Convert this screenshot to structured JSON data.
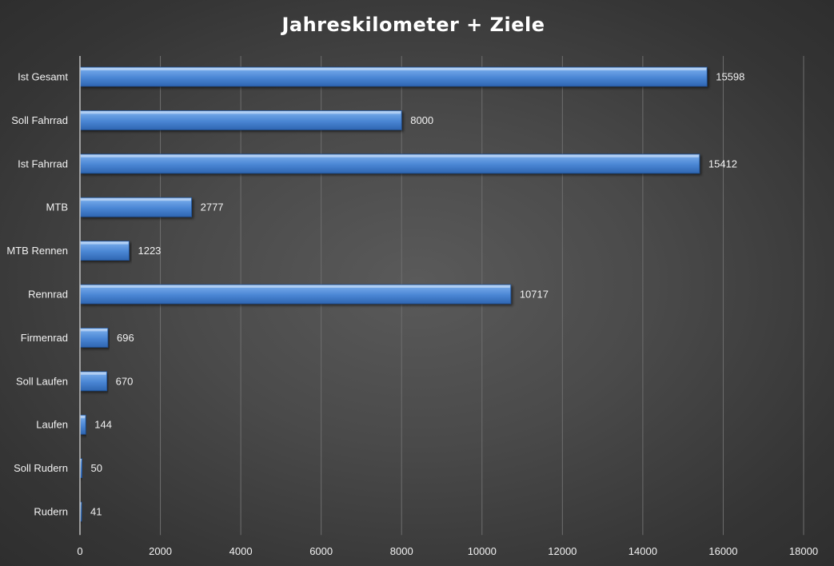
{
  "chart_data": {
    "type": "bar",
    "orientation": "horizontal",
    "title": "Jahreskilometer + Ziele",
    "xlabel": "",
    "ylabel": "",
    "categories": [
      "Ist Gesamt",
      "Soll Fahrrad",
      "Ist Fahrrad",
      "MTB",
      "MTB Rennen",
      "Rennrad",
      "Firmenrad",
      "Soll Laufen",
      "Laufen",
      "Soll Rudern",
      "Rudern"
    ],
    "values": [
      15598,
      8000,
      15412,
      2777,
      1223,
      10717,
      696,
      670,
      144,
      50,
      41
    ],
    "data_labels": [
      "15598",
      "8000",
      "15412",
      "2777",
      "1223",
      "10717",
      "696",
      "670",
      "144",
      "50",
      "41"
    ],
    "xlim": [
      0,
      18000
    ],
    "x_ticks": [
      0,
      2000,
      4000,
      6000,
      8000,
      10000,
      12000,
      14000,
      16000,
      18000
    ],
    "x_tick_labels": [
      "0",
      "2000",
      "4000",
      "6000",
      "8000",
      "10000",
      "12000",
      "14000",
      "16000",
      "18000"
    ],
    "grid": true,
    "legend": "none",
    "colors": {
      "bar": "#4a86d4",
      "bar_dark": "#2a5fa8",
      "bar_light": "#8db8ee",
      "background": "#4a4a4a",
      "text": "#f2f2f2",
      "title": "#ffffff",
      "gridline": "#6e6e6e"
    }
  }
}
